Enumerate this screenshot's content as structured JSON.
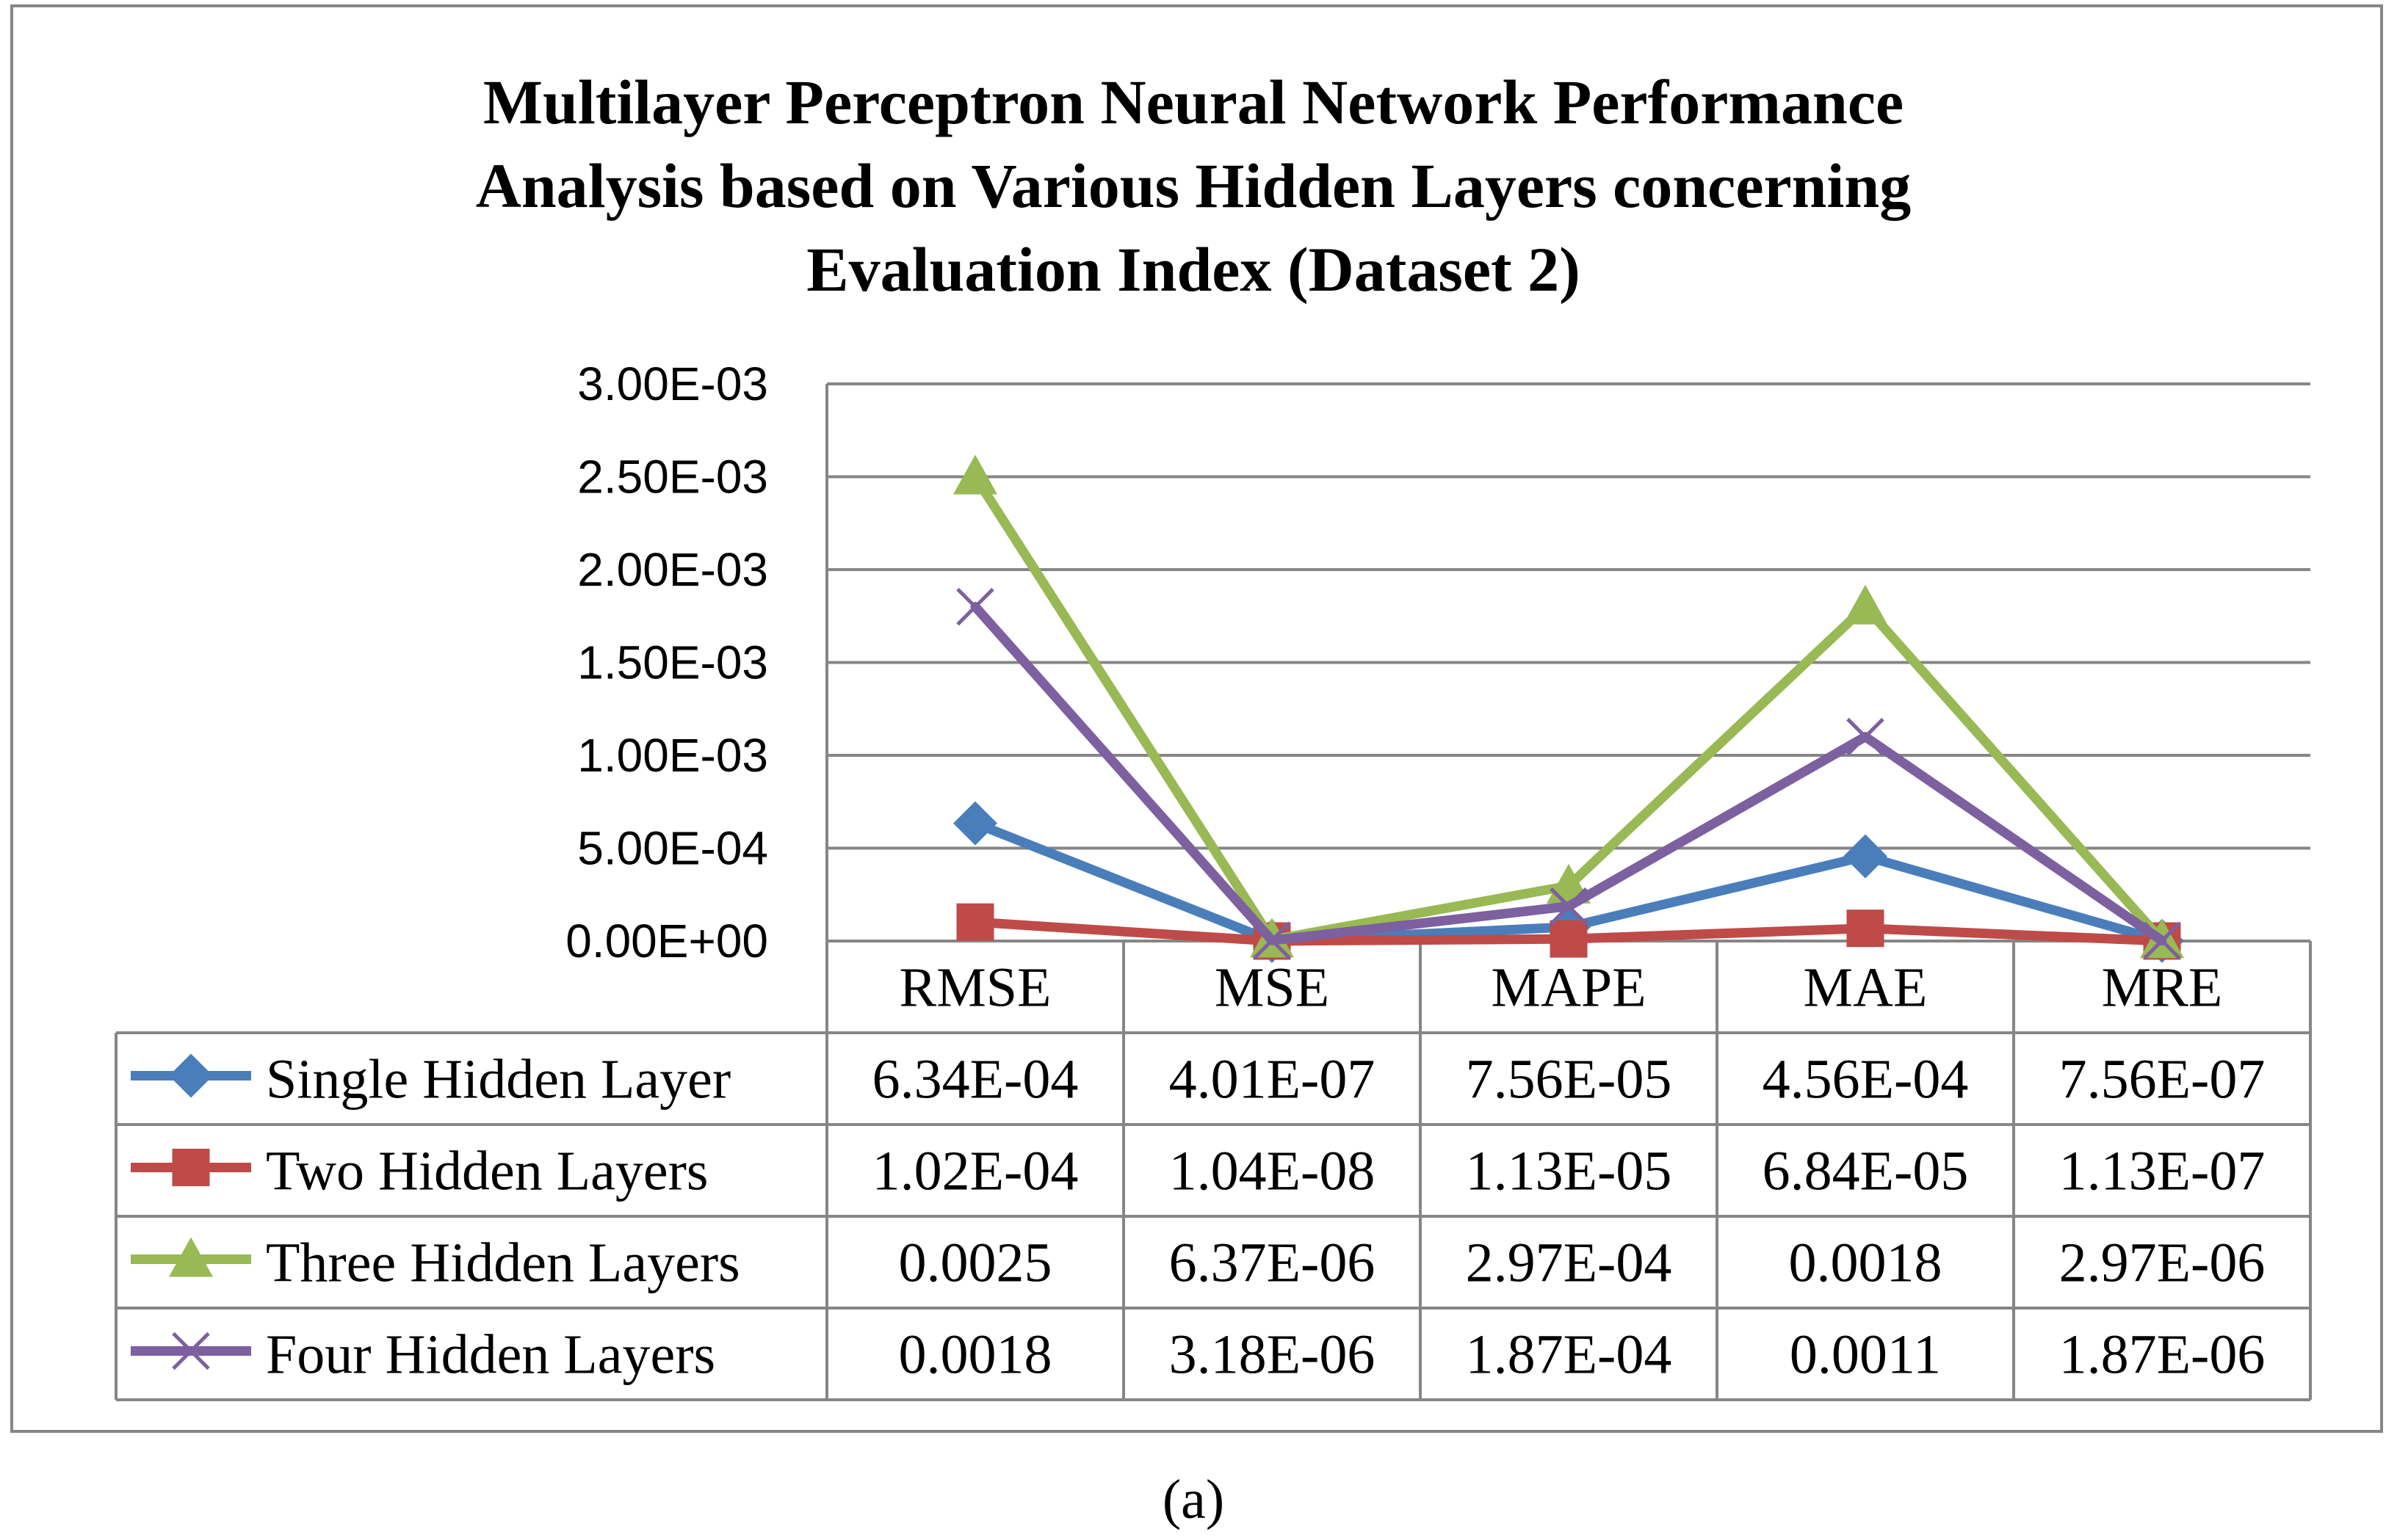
{
  "chart_data": {
    "type": "line",
    "title_lines": [
      "Multilayer Perceptron Neural Network Performance",
      "Analysis based on Various Hidden Layers concerning",
      "Evaluation Index (Dataset 2)"
    ],
    "categories": [
      "RMSE",
      "MSE",
      "MAPE",
      "MAE",
      "MRE"
    ],
    "ylim": [
      0,
      0.003
    ],
    "yticks": [
      0,
      0.0005,
      0.001,
      0.0015,
      0.002,
      0.0025,
      0.003
    ],
    "ytick_labels": [
      "0.00E+00",
      "5.00E-04",
      "1.00E-03",
      "1.50E-03",
      "2.00E-03",
      "2.50E-03",
      "3.00E-03"
    ],
    "grid": true,
    "legend": "data-table",
    "series": [
      {
        "name": "Single Hidden Layer",
        "color": "#4A7EBB",
        "marker": "diamond",
        "values": [
          0.000634,
          4.01e-07,
          7.56e-05,
          0.000456,
          7.56e-07
        ],
        "labels": [
          "6.34E-04",
          "4.01E-07",
          "7.56E-05",
          "4.56E-04",
          "7.56E-07"
        ]
      },
      {
        "name": "Two Hidden Layers",
        "color": "#BE4B48",
        "marker": "square",
        "values": [
          0.000102,
          1.04e-08,
          1.13e-05,
          6.84e-05,
          1.13e-07
        ],
        "labels": [
          "1.02E-04",
          "1.04E-08",
          "1.13E-05",
          "6.84E-05",
          "1.13E-07"
        ]
      },
      {
        "name": "Three Hidden Layers",
        "color": "#98B954",
        "marker": "triangle",
        "values": [
          0.0025,
          6.37e-06,
          0.000297,
          0.0018,
          2.97e-06
        ],
        "labels": [
          "0.0025",
          "6.37E-06",
          "2.97E-04",
          "0.0018",
          "2.97E-06"
        ]
      },
      {
        "name": "Four Hidden Layers",
        "color": "#7D60A0",
        "marker": "x",
        "values": [
          0.0018,
          3.18e-06,
          0.000187,
          0.0011,
          1.87e-06
        ],
        "labels": [
          "0.0018",
          "3.18E-06",
          "1.87E-04",
          "0.0011",
          "1.87E-06"
        ]
      }
    ]
  },
  "caption": "(a)"
}
